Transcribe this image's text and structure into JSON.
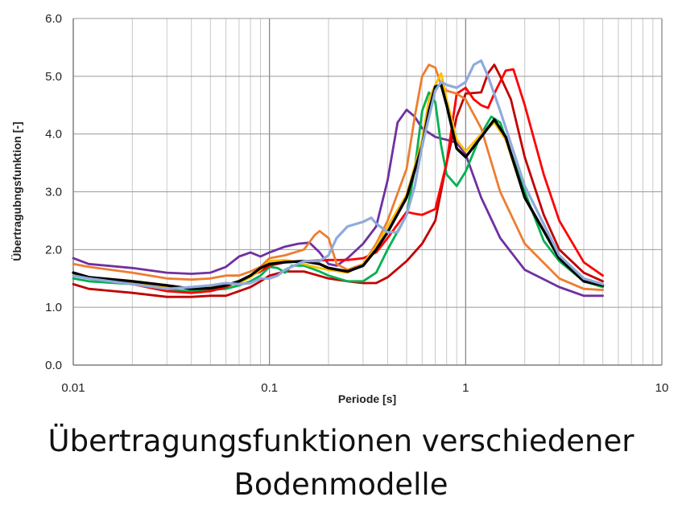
{
  "caption": {
    "line1": "Übertragungsfunktionen verschiedener",
    "line2": "Bodenmodelle"
  },
  "chart_data": {
    "type": "line",
    "xlabel": "Periode [s]",
    "ylabel": "Übertragubngsfunktion [-]",
    "xscale": "log",
    "xlim": [
      0.01,
      10
    ],
    "ylim": [
      0,
      6
    ],
    "xticks": [
      {
        "v": 0.01,
        "label": "0.01"
      },
      {
        "v": 0.1,
        "label": "0.1"
      },
      {
        "v": 1,
        "label": "1"
      },
      {
        "v": 10,
        "label": "10"
      }
    ],
    "yticks": [
      {
        "v": 0,
        "label": "0.0"
      },
      {
        "v": 1,
        "label": "1.0"
      },
      {
        "v": 2,
        "label": "2.0"
      },
      {
        "v": 3,
        "label": "3.0"
      },
      {
        "v": 4,
        "label": "4.0"
      },
      {
        "v": 5,
        "label": "5.0"
      },
      {
        "v": 6,
        "label": "6.0"
      }
    ],
    "grid": true,
    "legend": "none",
    "series": [
      {
        "color": "#7030a0",
        "points": [
          [
            0.01,
            1.85
          ],
          [
            0.012,
            1.75
          ],
          [
            0.02,
            1.68
          ],
          [
            0.03,
            1.6
          ],
          [
            0.04,
            1.58
          ],
          [
            0.05,
            1.6
          ],
          [
            0.06,
            1.7
          ],
          [
            0.07,
            1.88
          ],
          [
            0.08,
            1.95
          ],
          [
            0.09,
            1.88
          ],
          [
            0.1,
            1.95
          ],
          [
            0.12,
            2.05
          ],
          [
            0.14,
            2.1
          ],
          [
            0.16,
            2.12
          ],
          [
            0.18,
            1.95
          ],
          [
            0.2,
            1.75
          ],
          [
            0.22,
            1.72
          ],
          [
            0.25,
            1.85
          ],
          [
            0.3,
            2.1
          ],
          [
            0.35,
            2.4
          ],
          [
            0.4,
            3.2
          ],
          [
            0.45,
            4.2
          ],
          [
            0.5,
            4.42
          ],
          [
            0.55,
            4.3
          ],
          [
            0.6,
            4.1
          ],
          [
            0.7,
            3.95
          ],
          [
            0.8,
            3.9
          ],
          [
            0.9,
            3.85
          ],
          [
            1.0,
            3.65
          ],
          [
            1.2,
            2.9
          ],
          [
            1.5,
            2.2
          ],
          [
            2.0,
            1.65
          ],
          [
            3.0,
            1.35
          ],
          [
            4.0,
            1.2
          ],
          [
            5.0,
            1.2
          ]
        ]
      },
      {
        "color": "#c00000",
        "points": [
          [
            0.01,
            1.4
          ],
          [
            0.012,
            1.32
          ],
          [
            0.02,
            1.25
          ],
          [
            0.03,
            1.18
          ],
          [
            0.04,
            1.18
          ],
          [
            0.05,
            1.2
          ],
          [
            0.06,
            1.2
          ],
          [
            0.07,
            1.28
          ],
          [
            0.08,
            1.35
          ],
          [
            0.09,
            1.45
          ],
          [
            0.1,
            1.55
          ],
          [
            0.12,
            1.62
          ],
          [
            0.15,
            1.62
          ],
          [
            0.2,
            1.5
          ],
          [
            0.25,
            1.45
          ],
          [
            0.3,
            1.42
          ],
          [
            0.35,
            1.42
          ],
          [
            0.4,
            1.52
          ],
          [
            0.5,
            1.8
          ],
          [
            0.6,
            2.1
          ],
          [
            0.7,
            2.5
          ],
          [
            0.8,
            3.5
          ],
          [
            0.9,
            4.3
          ],
          [
            1.0,
            4.7
          ],
          [
            1.2,
            4.72
          ],
          [
            1.3,
            5.05
          ],
          [
            1.4,
            5.2
          ],
          [
            1.5,
            5.0
          ],
          [
            1.7,
            4.6
          ],
          [
            2.0,
            3.6
          ],
          [
            2.5,
            2.6
          ],
          [
            3.0,
            2.0
          ],
          [
            4.0,
            1.6
          ],
          [
            5.0,
            1.45
          ]
        ]
      },
      {
        "color": "#00b050",
        "points": [
          [
            0.01,
            1.5
          ],
          [
            0.012,
            1.45
          ],
          [
            0.02,
            1.4
          ],
          [
            0.03,
            1.3
          ],
          [
            0.04,
            1.28
          ],
          [
            0.05,
            1.3
          ],
          [
            0.06,
            1.32
          ],
          [
            0.07,
            1.38
          ],
          [
            0.08,
            1.45
          ],
          [
            0.09,
            1.55
          ],
          [
            0.1,
            1.7
          ],
          [
            0.11,
            1.68
          ],
          [
            0.12,
            1.6
          ],
          [
            0.13,
            1.72
          ],
          [
            0.15,
            1.72
          ],
          [
            0.18,
            1.62
          ],
          [
            0.2,
            1.55
          ],
          [
            0.25,
            1.45
          ],
          [
            0.3,
            1.45
          ],
          [
            0.35,
            1.6
          ],
          [
            0.4,
            2.0
          ],
          [
            0.5,
            2.6
          ],
          [
            0.55,
            3.4
          ],
          [
            0.6,
            4.4
          ],
          [
            0.65,
            4.72
          ],
          [
            0.7,
            4.55
          ],
          [
            0.75,
            3.8
          ],
          [
            0.8,
            3.3
          ],
          [
            0.9,
            3.1
          ],
          [
            1.0,
            3.35
          ],
          [
            1.2,
            4.0
          ],
          [
            1.35,
            4.3
          ],
          [
            1.5,
            4.2
          ],
          [
            2.0,
            3.0
          ],
          [
            2.5,
            2.15
          ],
          [
            3.0,
            1.8
          ],
          [
            4.0,
            1.45
          ],
          [
            5.0,
            1.35
          ]
        ]
      },
      {
        "color": "#ff0000",
        "points": [
          [
            0.01,
            1.55
          ],
          [
            0.012,
            1.5
          ],
          [
            0.02,
            1.4
          ],
          [
            0.03,
            1.28
          ],
          [
            0.04,
            1.25
          ],
          [
            0.05,
            1.28
          ],
          [
            0.06,
            1.35
          ],
          [
            0.07,
            1.45
          ],
          [
            0.08,
            1.55
          ],
          [
            0.09,
            1.62
          ],
          [
            0.1,
            1.72
          ],
          [
            0.12,
            1.78
          ],
          [
            0.15,
            1.8
          ],
          [
            0.2,
            1.82
          ],
          [
            0.25,
            1.82
          ],
          [
            0.3,
            1.85
          ],
          [
            0.35,
            1.95
          ],
          [
            0.4,
            2.2
          ],
          [
            0.5,
            2.65
          ],
          [
            0.55,
            2.62
          ],
          [
            0.6,
            2.6
          ],
          [
            0.7,
            2.7
          ],
          [
            0.8,
            3.5
          ],
          [
            0.9,
            4.7
          ],
          [
            1.0,
            4.8
          ],
          [
            1.1,
            4.6
          ],
          [
            1.2,
            4.5
          ],
          [
            1.3,
            4.45
          ],
          [
            1.4,
            4.7
          ],
          [
            1.6,
            5.1
          ],
          [
            1.75,
            5.12
          ],
          [
            2.0,
            4.5
          ],
          [
            2.5,
            3.3
          ],
          [
            3.0,
            2.5
          ],
          [
            4.0,
            1.78
          ],
          [
            5.0,
            1.55
          ]
        ]
      },
      {
        "color": "#ed7d31",
        "points": [
          [
            0.01,
            1.75
          ],
          [
            0.012,
            1.7
          ],
          [
            0.02,
            1.6
          ],
          [
            0.03,
            1.5
          ],
          [
            0.04,
            1.48
          ],
          [
            0.05,
            1.5
          ],
          [
            0.06,
            1.55
          ],
          [
            0.07,
            1.55
          ],
          [
            0.08,
            1.62
          ],
          [
            0.09,
            1.7
          ],
          [
            0.1,
            1.85
          ],
          [
            0.12,
            1.9
          ],
          [
            0.15,
            2.0
          ],
          [
            0.17,
            2.25
          ],
          [
            0.18,
            2.32
          ],
          [
            0.2,
            2.2
          ],
          [
            0.22,
            1.75
          ],
          [
            0.25,
            1.65
          ],
          [
            0.3,
            1.75
          ],
          [
            0.35,
            2.1
          ],
          [
            0.4,
            2.5
          ],
          [
            0.5,
            3.4
          ],
          [
            0.55,
            4.3
          ],
          [
            0.6,
            5.0
          ],
          [
            0.65,
            5.2
          ],
          [
            0.7,
            5.15
          ],
          [
            0.75,
            4.85
          ],
          [
            0.8,
            4.75
          ],
          [
            0.9,
            4.7
          ],
          [
            1.0,
            4.6
          ],
          [
            1.2,
            4.1
          ],
          [
            1.5,
            3.0
          ],
          [
            2.0,
            2.1
          ],
          [
            3.0,
            1.5
          ],
          [
            4.0,
            1.32
          ],
          [
            5.0,
            1.3
          ]
        ]
      },
      {
        "color": "#ffc000",
        "points": [
          [
            0.01,
            1.6
          ],
          [
            0.012,
            1.52
          ],
          [
            0.02,
            1.42
          ],
          [
            0.03,
            1.35
          ],
          [
            0.04,
            1.33
          ],
          [
            0.05,
            1.35
          ],
          [
            0.06,
            1.38
          ],
          [
            0.07,
            1.42
          ],
          [
            0.08,
            1.52
          ],
          [
            0.09,
            1.65
          ],
          [
            0.1,
            1.8
          ],
          [
            0.12,
            1.82
          ],
          [
            0.14,
            1.78
          ],
          [
            0.16,
            1.72
          ],
          [
            0.18,
            1.68
          ],
          [
            0.2,
            1.65
          ],
          [
            0.25,
            1.6
          ],
          [
            0.3,
            1.75
          ],
          [
            0.35,
            2.05
          ],
          [
            0.4,
            2.4
          ],
          [
            0.5,
            2.95
          ],
          [
            0.6,
            3.9
          ],
          [
            0.65,
            4.6
          ],
          [
            0.7,
            4.85
          ],
          [
            0.75,
            5.05
          ],
          [
            0.8,
            4.6
          ],
          [
            0.9,
            3.9
          ],
          [
            1.0,
            3.7
          ],
          [
            1.2,
            4.0
          ],
          [
            1.4,
            4.2
          ],
          [
            1.6,
            3.9
          ],
          [
            2.0,
            2.9
          ],
          [
            3.0,
            1.85
          ],
          [
            4.0,
            1.45
          ],
          [
            5.0,
            1.38
          ]
        ]
      },
      {
        "color": "#000000",
        "width": 3.4,
        "points": [
          [
            0.01,
            1.6
          ],
          [
            0.012,
            1.52
          ],
          [
            0.02,
            1.45
          ],
          [
            0.03,
            1.38
          ],
          [
            0.04,
            1.32
          ],
          [
            0.05,
            1.33
          ],
          [
            0.06,
            1.38
          ],
          [
            0.07,
            1.45
          ],
          [
            0.08,
            1.55
          ],
          [
            0.09,
            1.68
          ],
          [
            0.1,
            1.75
          ],
          [
            0.12,
            1.78
          ],
          [
            0.15,
            1.8
          ],
          [
            0.18,
            1.75
          ],
          [
            0.2,
            1.68
          ],
          [
            0.25,
            1.62
          ],
          [
            0.3,
            1.72
          ],
          [
            0.35,
            2.0
          ],
          [
            0.4,
            2.3
          ],
          [
            0.5,
            2.9
          ],
          [
            0.6,
            3.8
          ],
          [
            0.65,
            4.4
          ],
          [
            0.7,
            4.82
          ],
          [
            0.75,
            4.85
          ],
          [
            0.8,
            4.5
          ],
          [
            0.9,
            3.75
          ],
          [
            1.0,
            3.6
          ],
          [
            1.2,
            3.95
          ],
          [
            1.4,
            4.25
          ],
          [
            1.6,
            3.95
          ],
          [
            2.0,
            2.9
          ],
          [
            3.0,
            1.85
          ],
          [
            4.0,
            1.45
          ],
          [
            5.0,
            1.38
          ]
        ]
      },
      {
        "color": "#8faadc",
        "width": 3.2,
        "points": [
          [
            0.01,
            1.55
          ],
          [
            0.012,
            1.5
          ],
          [
            0.02,
            1.4
          ],
          [
            0.03,
            1.32
          ],
          [
            0.04,
            1.35
          ],
          [
            0.05,
            1.38
          ],
          [
            0.06,
            1.42
          ],
          [
            0.07,
            1.4
          ],
          [
            0.08,
            1.42
          ],
          [
            0.09,
            1.5
          ],
          [
            0.1,
            1.5
          ],
          [
            0.11,
            1.55
          ],
          [
            0.12,
            1.65
          ],
          [
            0.15,
            1.8
          ],
          [
            0.18,
            1.8
          ],
          [
            0.2,
            1.9
          ],
          [
            0.22,
            2.2
          ],
          [
            0.25,
            2.4
          ],
          [
            0.3,
            2.48
          ],
          [
            0.33,
            2.55
          ],
          [
            0.35,
            2.45
          ],
          [
            0.4,
            2.3
          ],
          [
            0.45,
            2.3
          ],
          [
            0.5,
            2.6
          ],
          [
            0.55,
            3.1
          ],
          [
            0.6,
            3.8
          ],
          [
            0.7,
            4.75
          ],
          [
            0.75,
            4.9
          ],
          [
            0.8,
            4.85
          ],
          [
            0.9,
            4.8
          ],
          [
            1.0,
            4.9
          ],
          [
            1.1,
            5.2
          ],
          [
            1.2,
            5.27
          ],
          [
            1.3,
            5.0
          ],
          [
            1.5,
            4.4
          ],
          [
            2.0,
            3.1
          ],
          [
            3.0,
            1.9
          ],
          [
            4.0,
            1.5
          ],
          [
            5.0,
            1.4
          ]
        ]
      }
    ]
  }
}
